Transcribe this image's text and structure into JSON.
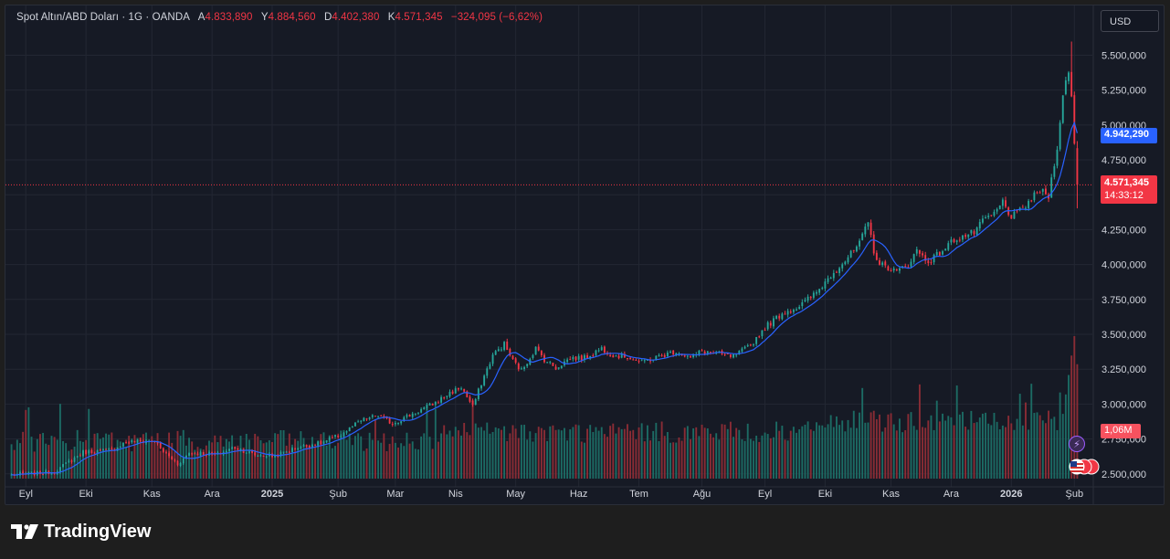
{
  "header": {
    "symbol": "Spot Altın/ABD Doları · 1G · OANDA",
    "open_key": "A",
    "open": "4.833,890",
    "high_key": "Y",
    "high": "4.884,560",
    "low_key": "D",
    "low": "4.402,380",
    "close_key": "K",
    "close": "4.571,345",
    "change": "−324,095 (−6,62%)"
  },
  "currency_button": "USD",
  "price_labels": {
    "ma": "4.942,290",
    "last": "4.571,345",
    "countdown": "14:33:12",
    "volume": "1,06M"
  },
  "brand": "TradingView",
  "colors": {
    "up": "#26a69a",
    "down": "#f23645",
    "ma": "#2962ff",
    "vol_up": "#1c6b64",
    "vol_down": "#8a2c35",
    "grid": "#232733"
  },
  "chart_data": {
    "type": "candlestick",
    "title": "Spot Altın/ABD Doları · 1G · OANDA",
    "y_axis_ticks": [
      "5.500,000",
      "5.250,000",
      "5.000,000",
      "4.750,000",
      "4.500,000",
      "4.250,000",
      "4.000,000",
      "3.750,000",
      "3.500,000",
      "3.250,000",
      "3.000,000",
      "2.750,000",
      "2.500,000"
    ],
    "y_tick_values": [
      5500,
      5250,
      5000,
      4750,
      4500,
      4250,
      4000,
      3750,
      3500,
      3250,
      3000,
      2750,
      2500
    ],
    "ylim": [
      2420,
      5660
    ],
    "x_axis_labels": [
      {
        "label": "Eyl",
        "bar": 5,
        "bold": false
      },
      {
        "label": "Eki",
        "bar": 26,
        "bold": false
      },
      {
        "label": "Kas",
        "bar": 49,
        "bold": false
      },
      {
        "label": "Ara",
        "bar": 70,
        "bold": false
      },
      {
        "label": "2025",
        "bar": 91,
        "bold": true
      },
      {
        "label": "Şub",
        "bar": 114,
        "bold": false
      },
      {
        "label": "Mar",
        "bar": 134,
        "bold": false
      },
      {
        "label": "Nis",
        "bar": 155,
        "bold": false
      },
      {
        "label": "May",
        "bar": 176,
        "bold": false
      },
      {
        "label": "Haz",
        "bar": 198,
        "bold": false
      },
      {
        "label": "Tem",
        "bar": 219,
        "bold": false
      },
      {
        "label": "Ağu",
        "bar": 241,
        "bold": false
      },
      {
        "label": "Eyl",
        "bar": 263,
        "bold": false
      },
      {
        "label": "Eki",
        "bar": 284,
        "bold": false
      },
      {
        "label": "Kas",
        "bar": 307,
        "bold": false
      },
      {
        "label": "Ara",
        "bar": 328,
        "bold": false
      },
      {
        "label": "2026",
        "bar": 349,
        "bold": true
      },
      {
        "label": "Şub",
        "bar": 371,
        "bold": false
      }
    ],
    "bar_count": 373,
    "close_anchors": [
      [
        0,
        2492
      ],
      [
        15,
        2515
      ],
      [
        25,
        2655
      ],
      [
        35,
        2670
      ],
      [
        40,
        2730
      ],
      [
        50,
        2735
      ],
      [
        52,
        2680
      ],
      [
        58,
        2570
      ],
      [
        62,
        2650
      ],
      [
        72,
        2640
      ],
      [
        78,
        2690
      ],
      [
        85,
        2635
      ],
      [
        92,
        2630
      ],
      [
        100,
        2690
      ],
      [
        108,
        2720
      ],
      [
        115,
        2780
      ],
      [
        122,
        2880
      ],
      [
        128,
        2920
      ],
      [
        133,
        2860
      ],
      [
        138,
        2910
      ],
      [
        148,
        3010
      ],
      [
        153,
        3080
      ],
      [
        157,
        3120
      ],
      [
        161,
        2980
      ],
      [
        164,
        3150
      ],
      [
        168,
        3350
      ],
      [
        172,
        3430
      ],
      [
        175,
        3310
      ],
      [
        178,
        3240
      ],
      [
        183,
        3400
      ],
      [
        186,
        3320
      ],
      [
        190,
        3260
      ],
      [
        195,
        3330
      ],
      [
        200,
        3330
      ],
      [
        206,
        3400
      ],
      [
        210,
        3350
      ],
      [
        215,
        3340
      ],
      [
        220,
        3300
      ],
      [
        226,
        3340
      ],
      [
        232,
        3380
      ],
      [
        237,
        3330
      ],
      [
        241,
        3380
      ],
      [
        246,
        3360
      ],
      [
        252,
        3340
      ],
      [
        258,
        3420
      ],
      [
        263,
        3550
      ],
      [
        269,
        3650
      ],
      [
        275,
        3700
      ],
      [
        281,
        3800
      ],
      [
        287,
        3950
      ],
      [
        292,
        4050
      ],
      [
        296,
        4150
      ],
      [
        299,
        4300
      ],
      [
        301,
        4100
      ],
      [
        303,
        4000
      ],
      [
        306,
        3980
      ],
      [
        309,
        3950
      ],
      [
        313,
        4000
      ],
      [
        316,
        4100
      ],
      [
        320,
        4020
      ],
      [
        325,
        4100
      ],
      [
        329,
        4180
      ],
      [
        332,
        4200
      ],
      [
        336,
        4230
      ],
      [
        340,
        4330
      ],
      [
        343,
        4360
      ],
      [
        346,
        4450
      ],
      [
        349,
        4340
      ],
      [
        352,
        4380
      ],
      [
        356,
        4470
      ],
      [
        359,
        4530
      ],
      [
        362,
        4490
      ],
      [
        365,
        4850
      ],
      [
        367,
        5200
      ],
      [
        368,
        5300
      ],
      [
        369,
        5400
      ],
      [
        370,
        5200
      ],
      [
        371,
        4860
      ],
      [
        372,
        4571
      ]
    ],
    "ma_last": 4942.29,
    "last_close": 4571.345,
    "volume_last_millions": 1.06
  }
}
